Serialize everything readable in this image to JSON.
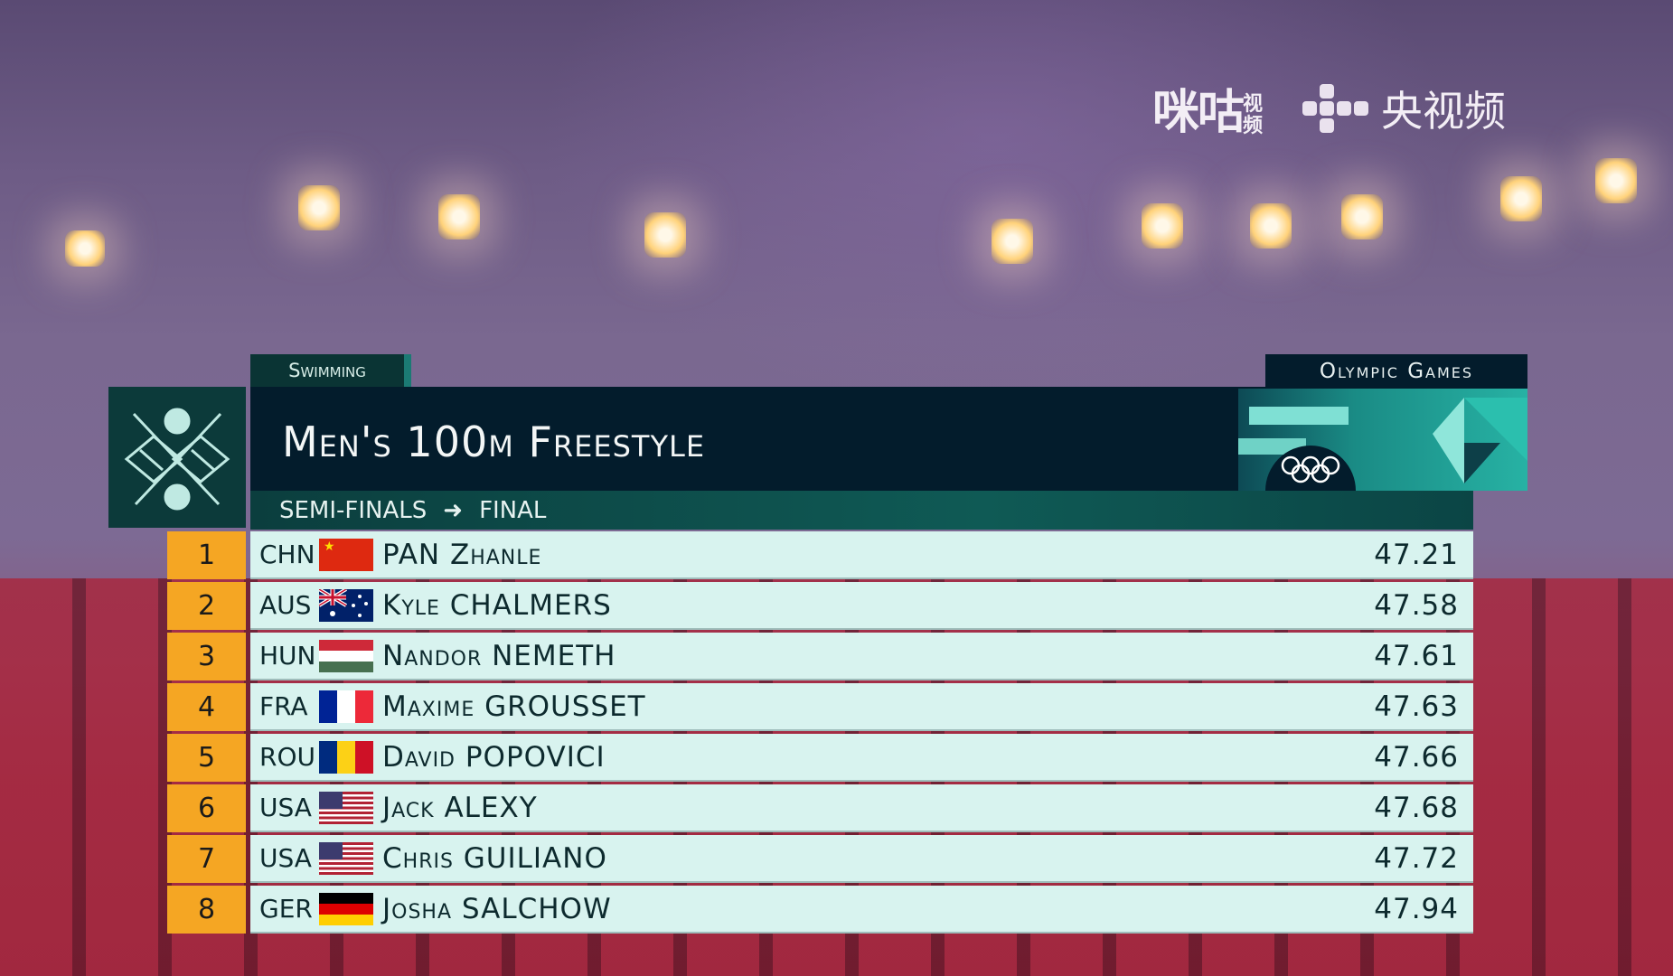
{
  "broadcaster_logos": {
    "migu": "咪咕",
    "migu_sub": "视频",
    "cctv": "央视频"
  },
  "header": {
    "sport": "Swimming",
    "event": "Men's 100m Freestyle",
    "brand": "Olympic Games",
    "phase_from": "SEMI-FINALS",
    "phase_to": "FINAL",
    "arrow_icon": "right-arrow"
  },
  "colors": {
    "rank_bg": "#f5a623",
    "row_bg": "#d8f3ef",
    "header_bg": "#031c2c",
    "accent": "#1b7a74"
  },
  "results": [
    {
      "rank": "1",
      "noc": "CHN",
      "name": "PAN Zhanle",
      "time": "47.21",
      "flag": "china"
    },
    {
      "rank": "2",
      "noc": "AUS",
      "name": "Kyle CHALMERS",
      "time": "47.58",
      "flag": "australia"
    },
    {
      "rank": "3",
      "noc": "HUN",
      "name": "Nandor NEMETH",
      "time": "47.61",
      "flag": "hungary"
    },
    {
      "rank": "4",
      "noc": "FRA",
      "name": "Maxime GROUSSET",
      "time": "47.63",
      "flag": "france"
    },
    {
      "rank": "5",
      "noc": "ROU",
      "name": "David POPOVICI",
      "time": "47.66",
      "flag": "romania"
    },
    {
      "rank": "6",
      "noc": "USA",
      "name": "Jack ALEXY",
      "time": "47.68",
      "flag": "usa"
    },
    {
      "rank": "7",
      "noc": "USA",
      "name": "Chris GUILIANO",
      "time": "47.72",
      "flag": "usa"
    },
    {
      "rank": "8",
      "noc": "GER",
      "name": "Josha SALCHOW",
      "time": "47.94",
      "flag": "germany"
    }
  ]
}
